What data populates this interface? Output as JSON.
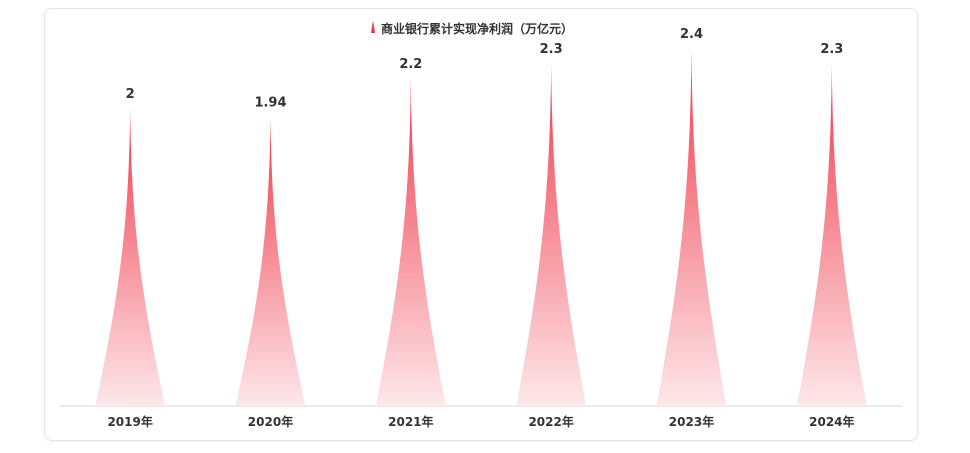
{
  "chart_data": {
    "type": "bar",
    "title": "",
    "categories": [
      "2019年",
      "2020年",
      "2021年",
      "2022年",
      "2023年",
      "2024年"
    ],
    "series": [
      {
        "name": "商业银行累计实现净利润（万亿元）",
        "values": [
          2,
          1.94,
          2.2,
          2.3,
          2.4,
          2.3
        ]
      }
    ],
    "value_labels": [
      "2",
      "1.94",
      "2.2",
      "2.3",
      "2.4",
      "2.3"
    ],
    "xlabel": "",
    "ylabel": "",
    "ylim": [
      0,
      2.5
    ],
    "grid": false,
    "legend_position": "top-center",
    "bar_shape": "pictorial-spike",
    "colors": {
      "bar_top": "#f0384a",
      "bar_bottom": "#fde8ea",
      "axis": "#d7d7d7",
      "label": "#333333"
    }
  }
}
